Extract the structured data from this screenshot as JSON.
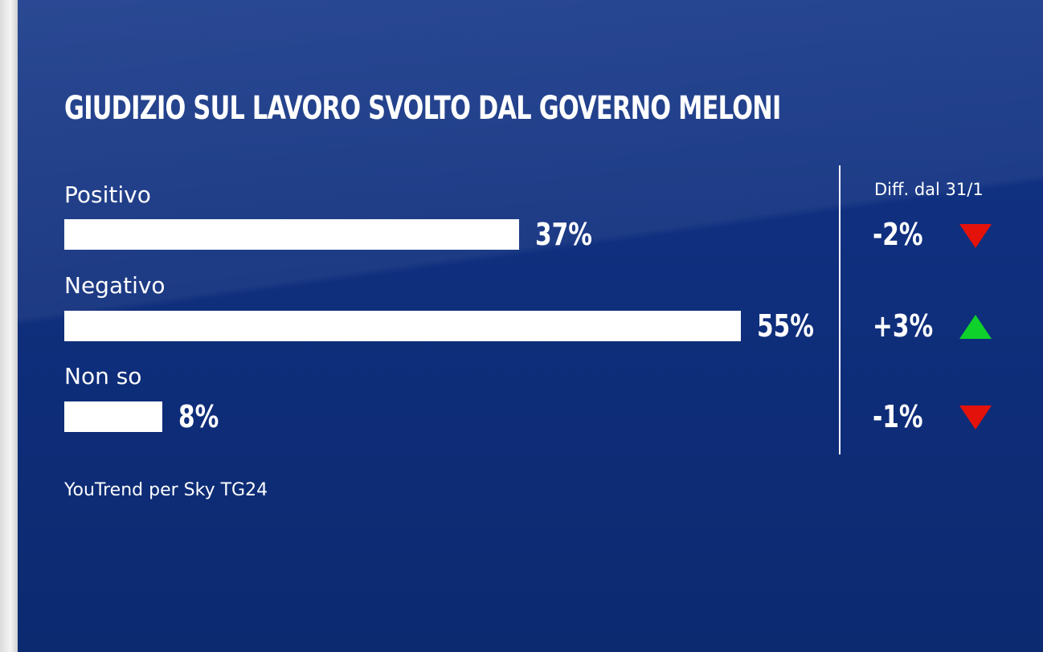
{
  "chart_data": {
    "type": "bar",
    "title": "GIUDIZIO SUL LAVORO SVOLTO DAL GOVERNO MELONI",
    "categories": [
      "Positivo",
      "Negativo",
      "Non so"
    ],
    "values": [
      37,
      55,
      8
    ],
    "value_labels": [
      "37%",
      "55%",
      "8%"
    ],
    "unit": "%",
    "diff_header": "Diff. dal 31/1",
    "diffs": [
      -2,
      3,
      -1
    ],
    "diff_labels": [
      "-2%",
      "+3%",
      "-1%"
    ],
    "diff_directions": [
      "down",
      "up",
      "down"
    ],
    "source": "YouTrend per Sky TG24",
    "colors": {
      "background": "#0f2e7c",
      "bar": "#ffffff",
      "arrow_up": "#0fd12b",
      "arrow_down": "#e3120b"
    }
  }
}
